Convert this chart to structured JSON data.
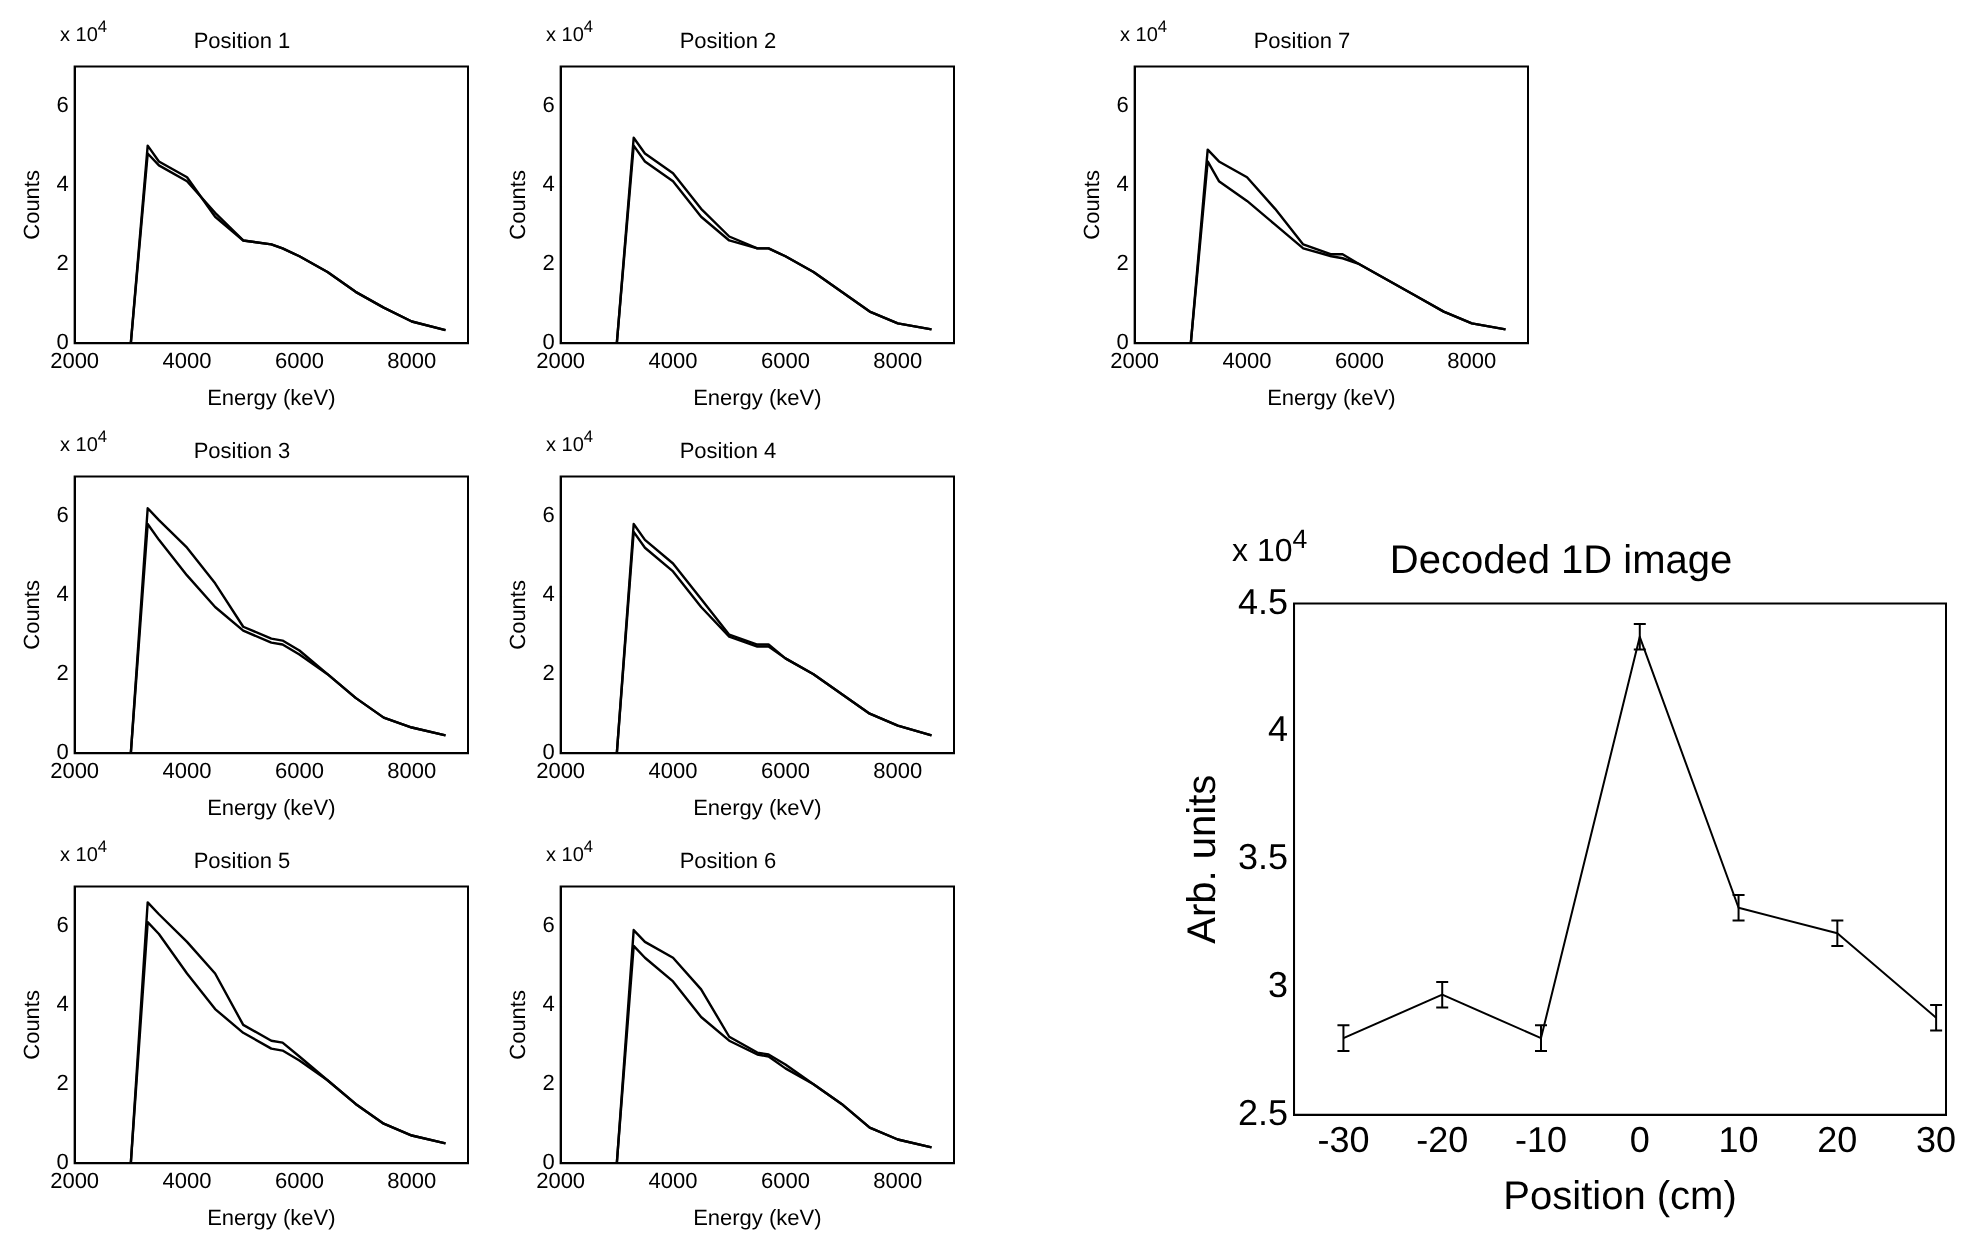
{
  "chart_data": [
    {
      "type": "line",
      "title": "Position 1",
      "xlabel": "Energy (keV)",
      "ylabel": "Counts",
      "annotations": [
        "x 10$^{4}$"
      ],
      "x": [
        2000,
        3000,
        3300,
        3500,
        4000,
        4500,
        5000,
        5500,
        5700,
        6000,
        6500,
        7000,
        7500,
        8000,
        8600
      ],
      "xlim": [
        2000,
        9000
      ],
      "xticks": [
        2000,
        4000,
        6000,
        8000
      ],
      "ylim": [
        0,
        7
      ],
      "yticks": [
        0,
        2,
        4,
        6
      ],
      "series": [
        {
          "color": "#000000",
          "values": [
            0,
            0,
            5.0,
            4.6,
            4.2,
            3.2,
            2.6,
            2.5,
            2.4,
            2.2,
            1.8,
            1.3,
            0.9,
            0.55,
            0.33
          ]
        },
        {
          "color": "#000000",
          "values": [
            0,
            0,
            4.8,
            4.5,
            4.1,
            3.3,
            2.6,
            2.5,
            2.4,
            2.2,
            1.8,
            1.3,
            0.9,
            0.55,
            0.33
          ]
        }
      ]
    },
    {
      "type": "line",
      "title": "Position 2",
      "xlabel": "Energy (keV)",
      "ylabel": "Counts",
      "annotations": [
        "x 10$^{4}$"
      ],
      "x": [
        2000,
        3000,
        3300,
        3500,
        4000,
        4500,
        5000,
        5500,
        5700,
        6000,
        6500,
        7000,
        7500,
        8000,
        8600
      ],
      "xlim": [
        2000,
        9000
      ],
      "xticks": [
        2000,
        4000,
        6000,
        8000
      ],
      "ylim": [
        0,
        7
      ],
      "yticks": [
        0,
        2,
        4,
        6
      ],
      "series": [
        {
          "color": "#000000",
          "values": [
            0,
            0,
            5.2,
            4.8,
            4.3,
            3.4,
            2.7,
            2.4,
            2.4,
            2.2,
            1.8,
            1.3,
            0.8,
            0.5,
            0.35
          ]
        },
        {
          "color": "#000000",
          "values": [
            0,
            0,
            5.0,
            4.6,
            4.1,
            3.2,
            2.6,
            2.4,
            2.4,
            2.2,
            1.8,
            1.3,
            0.8,
            0.5,
            0.35
          ]
        }
      ]
    },
    {
      "type": "line",
      "title": "Position 7",
      "xlabel": "Energy (keV)",
      "ylabel": "Counts",
      "annotations": [
        "x 10$^{4}$"
      ],
      "x": [
        2000,
        3000,
        3300,
        3500,
        4000,
        4500,
        5000,
        5500,
        5700,
        6000,
        6500,
        7000,
        7500,
        8000,
        8600
      ],
      "xlim": [
        2000,
        9000
      ],
      "xticks": [
        2000,
        4000,
        6000,
        8000
      ],
      "ylim": [
        0,
        7
      ],
      "yticks": [
        0,
        2,
        4,
        6
      ],
      "series": [
        {
          "color": "#000000",
          "values": [
            0,
            0,
            4.9,
            4.6,
            4.2,
            3.4,
            2.5,
            2.25,
            2.25,
            2.0,
            1.6,
            1.2,
            0.8,
            0.5,
            0.35
          ]
        },
        {
          "color": "#000000",
          "values": [
            0,
            0,
            4.6,
            4.1,
            3.6,
            3.0,
            2.4,
            2.2,
            2.15,
            2.0,
            1.6,
            1.2,
            0.8,
            0.5,
            0.35
          ]
        }
      ]
    },
    {
      "type": "line",
      "title": "Position 3",
      "xlabel": "Energy (keV)",
      "ylabel": "Counts",
      "annotations": [
        "x 10$^{4}$"
      ],
      "x": [
        2000,
        3000,
        3300,
        3500,
        4000,
        4500,
        5000,
        5500,
        5700,
        6000,
        6500,
        7000,
        7500,
        8000,
        8600
      ],
      "xlim": [
        2000,
        9000
      ],
      "xticks": [
        2000,
        4000,
        6000,
        8000
      ],
      "ylim": [
        0,
        7
      ],
      "yticks": [
        0,
        2,
        4,
        6
      ],
      "series": [
        {
          "color": "#000000",
          "values": [
            0,
            0,
            6.2,
            5.9,
            5.2,
            4.3,
            3.2,
            2.9,
            2.85,
            2.6,
            2.0,
            1.4,
            0.9,
            0.65,
            0.45
          ]
        },
        {
          "color": "#000000",
          "values": [
            0,
            0,
            5.8,
            5.4,
            4.5,
            3.7,
            3.1,
            2.8,
            2.75,
            2.5,
            2.0,
            1.4,
            0.9,
            0.65,
            0.45
          ]
        }
      ]
    },
    {
      "type": "line",
      "title": "Position 4",
      "xlabel": "Energy (keV)",
      "ylabel": "Counts",
      "annotations": [
        "x 10$^{4}$"
      ],
      "x": [
        2000,
        3000,
        3300,
        3500,
        4000,
        4500,
        5000,
        5500,
        5700,
        6000,
        6500,
        7000,
        7500,
        8000,
        8600
      ],
      "xlim": [
        2000,
        9000
      ],
      "xticks": [
        2000,
        4000,
        6000,
        8000
      ],
      "ylim": [
        0,
        7
      ],
      "yticks": [
        0,
        2,
        4,
        6
      ],
      "series": [
        {
          "color": "#000000",
          "values": [
            0,
            0,
            5.8,
            5.4,
            4.8,
            3.9,
            3.0,
            2.75,
            2.75,
            2.4,
            2.0,
            1.5,
            1.0,
            0.7,
            0.45
          ]
        },
        {
          "color": "#000000",
          "values": [
            0,
            0,
            5.6,
            5.2,
            4.6,
            3.7,
            2.95,
            2.7,
            2.7,
            2.4,
            2.0,
            1.5,
            1.0,
            0.7,
            0.45
          ]
        }
      ]
    },
    {
      "type": "line",
      "title": "Position 5",
      "xlabel": "Energy (keV)",
      "ylabel": "Counts",
      "annotations": [
        "x 10$^{4}$"
      ],
      "x": [
        2000,
        3000,
        3300,
        3500,
        4000,
        4500,
        5000,
        5500,
        5700,
        6000,
        6500,
        7000,
        7500,
        8000,
        8600
      ],
      "xlim": [
        2000,
        9000
      ],
      "xticks": [
        2000,
        4000,
        6000,
        8000
      ],
      "ylim": [
        0,
        7
      ],
      "yticks": [
        0,
        2,
        4,
        6
      ],
      "series": [
        {
          "color": "#000000",
          "values": [
            0,
            0,
            6.6,
            6.3,
            5.6,
            4.8,
            3.5,
            3.1,
            3.05,
            2.7,
            2.1,
            1.5,
            1.0,
            0.7,
            0.5
          ]
        },
        {
          "color": "#000000",
          "values": [
            0,
            0,
            6.1,
            5.8,
            4.8,
            3.9,
            3.3,
            2.9,
            2.85,
            2.6,
            2.1,
            1.5,
            1.0,
            0.7,
            0.5
          ]
        }
      ]
    },
    {
      "type": "line",
      "title": "Position 6",
      "xlabel": "Energy (keV)",
      "ylabel": "Counts",
      "annotations": [
        "x 10$^{4}$"
      ],
      "x": [
        2000,
        3000,
        3300,
        3500,
        4000,
        4500,
        5000,
        5500,
        5700,
        6000,
        6500,
        7000,
        7500,
        8000,
        8600
      ],
      "xlim": [
        2000,
        9000
      ],
      "xticks": [
        2000,
        4000,
        6000,
        8000
      ],
      "ylim": [
        0,
        7
      ],
      "yticks": [
        0,
        2,
        4,
        6
      ],
      "series": [
        {
          "color": "#000000",
          "values": [
            0,
            0,
            5.9,
            5.6,
            5.2,
            4.4,
            3.2,
            2.8,
            2.75,
            2.5,
            2.0,
            1.5,
            0.9,
            0.6,
            0.4
          ]
        },
        {
          "color": "#000000",
          "values": [
            0,
            0,
            5.5,
            5.2,
            4.6,
            3.7,
            3.1,
            2.75,
            2.7,
            2.4,
            2.0,
            1.5,
            0.9,
            0.6,
            0.4
          ]
        }
      ]
    },
    {
      "type": "line",
      "title": "Decoded 1D image",
      "xlabel": "Position (cm)",
      "ylabel": "Arb. units",
      "annotations": [
        "x 10$^{4}$"
      ],
      "x": [
        -30,
        -20,
        -10,
        0,
        10,
        20,
        30
      ],
      "xlim": [
        -35,
        31
      ],
      "xticks": [
        -30,
        -20,
        -10,
        0,
        10,
        20,
        30
      ],
      "ylim": [
        2.5,
        4.5
      ],
      "yticks": [
        2.5,
        3,
        3.5,
        4,
        4.5
      ],
      "series": [
        {
          "color": "#000000",
          "values": [
            2.8,
            2.97,
            2.8,
            4.37,
            3.31,
            3.21,
            2.88
          ],
          "errors": [
            0.05,
            0.05,
            0.05,
            0.05,
            0.05,
            0.05,
            0.05
          ]
        }
      ]
    }
  ]
}
